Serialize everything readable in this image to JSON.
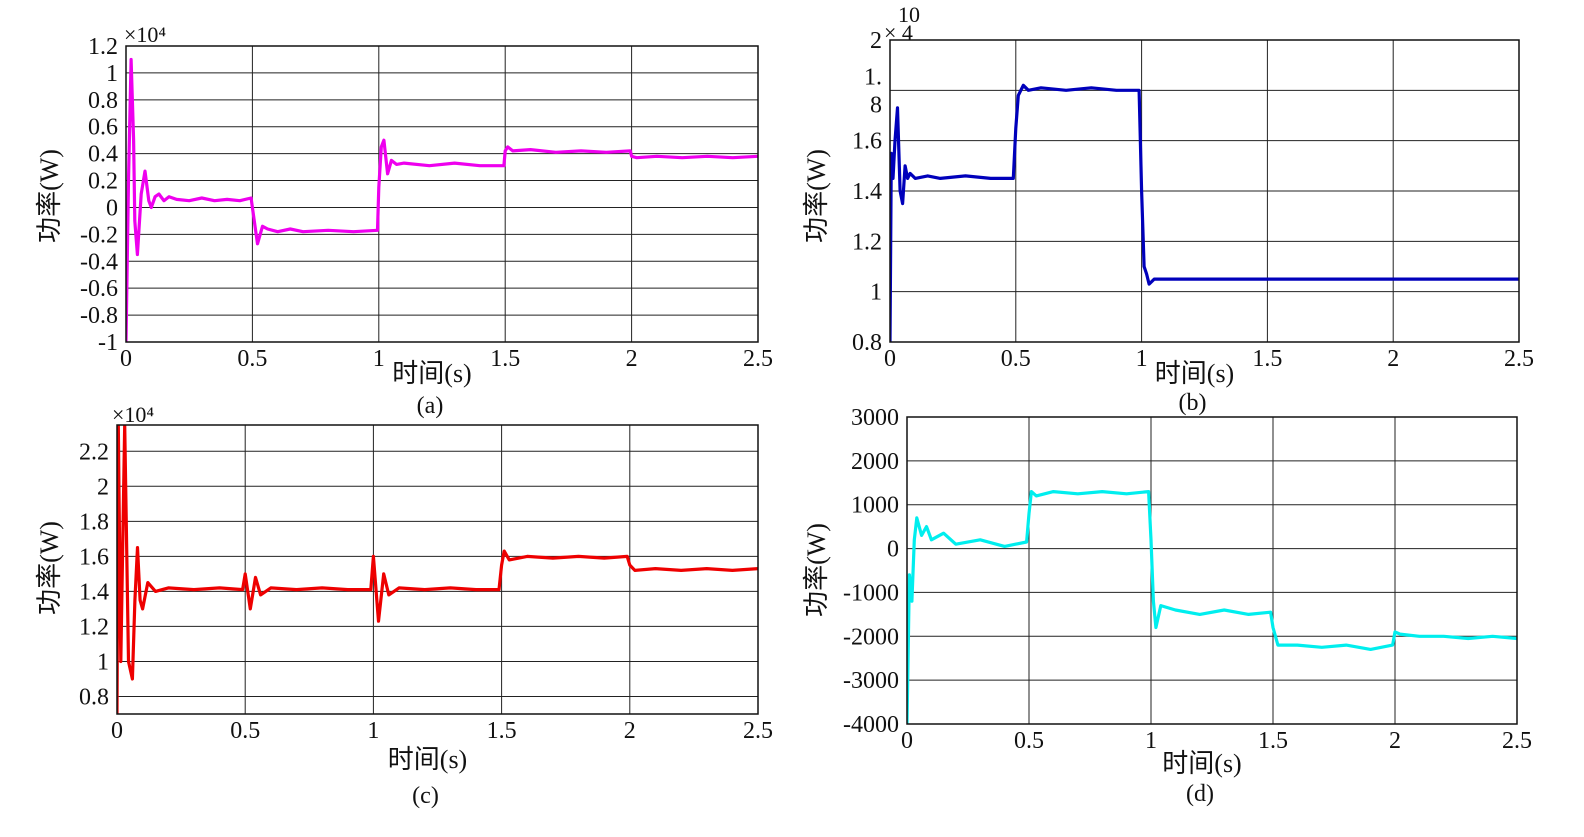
{
  "chart_data": [
    {
      "type": "line",
      "panel_label": "(a)",
      "xlabel": "时间(s)",
      "ylabel": "功率(W)",
      "multiplier": "×10⁴",
      "xlim": [
        0,
        2.5
      ],
      "ylim": [
        -1,
        1.2
      ],
      "xticks": [
        "0",
        "0.5",
        "1",
        "1.5",
        "2",
        "2.5"
      ],
      "yticks": [
        "1.2",
        "1",
        "0.8",
        "0.6",
        "0.4",
        "0.2",
        "0",
        "-0.2",
        "-0.4",
        "-0.6",
        "-0.8",
        "-1"
      ],
      "grid": true,
      "color": "#ee00ee",
      "series": [
        {
          "x": [
            0,
            0.01,
            0.02,
            0.03,
            0.035,
            0.045,
            0.06,
            0.075,
            0.09,
            0.1,
            0.115,
            0.13,
            0.15,
            0.17,
            0.2,
            0.25,
            0.3,
            0.35,
            0.4,
            0.45,
            0.495,
            0.5,
            0.52,
            0.54,
            0.56,
            0.6,
            0.65,
            0.7,
            0.8,
            0.9,
            0.995,
            1.0,
            1.01,
            1.02,
            1.035,
            1.05,
            1.07,
            1.1,
            1.2,
            1.3,
            1.4,
            1.495,
            1.5,
            1.51,
            1.53,
            1.6,
            1.7,
            1.8,
            1.9,
            1.995,
            2.0,
            2.02,
            2.1,
            2.2,
            2.3,
            2.4,
            2.5
          ],
          "y": [
            -1.0,
            0.2,
            1.1,
            0.5,
            -0.1,
            -0.35,
            0.1,
            0.27,
            0.05,
            0.0,
            0.08,
            0.1,
            0.05,
            0.08,
            0.06,
            0.05,
            0.07,
            0.05,
            0.06,
            0.05,
            0.07,
            0.0,
            -0.27,
            -0.14,
            -0.16,
            -0.18,
            -0.16,
            -0.18,
            -0.17,
            -0.18,
            -0.17,
            0.15,
            0.45,
            0.5,
            0.25,
            0.35,
            0.32,
            0.33,
            0.31,
            0.33,
            0.31,
            0.31,
            0.42,
            0.45,
            0.42,
            0.43,
            0.41,
            0.42,
            0.41,
            0.42,
            0.38,
            0.37,
            0.38,
            0.37,
            0.38,
            0.37,
            0.38
          ]
        }
      ]
    },
    {
      "type": "line",
      "panel_label": "(b)",
      "xlabel": "时间(s)",
      "ylabel": "功率(W)",
      "multiplier_top": "10",
      "multiplier_bottom": "× 4",
      "xlim": [
        0,
        2.5
      ],
      "ylim": [
        0.8,
        2
      ],
      "xticks": [
        "0",
        "0.5",
        "1",
        "1.5",
        "2",
        "2.5"
      ],
      "ytick_values": [
        2,
        1.8,
        1.6,
        1.4,
        1.2,
        1,
        0.8
      ],
      "yticks": [
        "2",
        "1.",
        "8",
        "1.6",
        "1.4",
        "1.2",
        "1",
        "0.8"
      ],
      "grid": true,
      "color": "#0000bb",
      "series": [
        {
          "x": [
            0,
            0.005,
            0.012,
            0.02,
            0.03,
            0.04,
            0.05,
            0.06,
            0.07,
            0.08,
            0.1,
            0.15,
            0.2,
            0.3,
            0.4,
            0.49,
            0.5,
            0.51,
            0.53,
            0.55,
            0.6,
            0.7,
            0.8,
            0.9,
            0.99,
            1.0,
            1.01,
            1.02,
            1.03,
            1.05,
            1.1,
            1.3,
            1.5,
            1.7,
            1.9,
            2.1,
            2.3,
            2.5
          ],
          "y": [
            0.8,
            1.55,
            1.45,
            1.6,
            1.73,
            1.4,
            1.35,
            1.5,
            1.45,
            1.47,
            1.45,
            1.46,
            1.45,
            1.46,
            1.45,
            1.45,
            1.65,
            1.78,
            1.82,
            1.8,
            1.81,
            1.8,
            1.81,
            1.8,
            1.8,
            1.4,
            1.1,
            1.07,
            1.03,
            1.05,
            1.05,
            1.05,
            1.05,
            1.05,
            1.05,
            1.05,
            1.05,
            1.05
          ]
        }
      ]
    },
    {
      "type": "line",
      "panel_label": "(c)",
      "xlabel": "时间(s)",
      "ylabel": "功率(W)",
      "multiplier": "×10⁴",
      "xlim": [
        0,
        2.5
      ],
      "ylim": [
        0.7,
        2.35
      ],
      "xticks": [
        "0",
        "0.5",
        "1",
        "1.5",
        "2",
        "2.5"
      ],
      "ytick_values": [
        2.2,
        2,
        1.8,
        1.6,
        1.4,
        1.2,
        1,
        0.8
      ],
      "yticks": [
        "2.2",
        "2",
        "1.8",
        "1.6",
        "1.4",
        "1.2",
        "1",
        "0.8"
      ],
      "grid": true,
      "color": "#ee0000",
      "series": [
        {
          "x": [
            0,
            0.005,
            0.015,
            0.03,
            0.045,
            0.06,
            0.07,
            0.08,
            0.09,
            0.1,
            0.12,
            0.15,
            0.2,
            0.3,
            0.4,
            0.49,
            0.5,
            0.52,
            0.54,
            0.56,
            0.6,
            0.7,
            0.8,
            0.9,
            0.99,
            1.0,
            1.02,
            1.04,
            1.06,
            1.1,
            1.2,
            1.3,
            1.4,
            1.49,
            1.5,
            1.51,
            1.53,
            1.6,
            1.7,
            1.8,
            1.9,
            1.99,
            2.0,
            2.02,
            2.1,
            2.2,
            2.3,
            2.4,
            2.5
          ],
          "y": [
            0.7,
            2.35,
            1.0,
            2.35,
            1.0,
            0.9,
            1.35,
            1.65,
            1.35,
            1.3,
            1.45,
            1.4,
            1.42,
            1.41,
            1.42,
            1.41,
            1.5,
            1.3,
            1.48,
            1.38,
            1.42,
            1.41,
            1.42,
            1.41,
            1.41,
            1.6,
            1.23,
            1.5,
            1.38,
            1.42,
            1.41,
            1.42,
            1.41,
            1.41,
            1.55,
            1.63,
            1.58,
            1.6,
            1.59,
            1.6,
            1.59,
            1.6,
            1.55,
            1.52,
            1.53,
            1.52,
            1.53,
            1.52,
            1.53
          ]
        }
      ]
    },
    {
      "type": "line",
      "panel_label": "(d)",
      "xlabel": "时间(s)",
      "ylabel": "功率(W)",
      "xlim": [
        0,
        2.5
      ],
      "ylim": [
        -4000,
        3000
      ],
      "xticks": [
        "0",
        "0.5",
        "1",
        "1.5",
        "2",
        "2.5"
      ],
      "ytick_values": [
        3000,
        2000,
        1000,
        0,
        -1000,
        -2000,
        -3000,
        -4000
      ],
      "yticks": [
        "3000",
        "2000",
        "1000",
        "0",
        "-1000",
        "-2000",
        "-3000",
        "-4000"
      ],
      "grid": true,
      "color": "#00eeee",
      "series": [
        {
          "x": [
            0,
            0.01,
            0.02,
            0.03,
            0.04,
            0.06,
            0.08,
            0.1,
            0.15,
            0.2,
            0.3,
            0.4,
            0.49,
            0.5,
            0.51,
            0.53,
            0.6,
            0.7,
            0.8,
            0.9,
            0.99,
            1.0,
            1.01,
            1.02,
            1.04,
            1.1,
            1.2,
            1.3,
            1.4,
            1.49,
            1.5,
            1.52,
            1.6,
            1.7,
            1.8,
            1.9,
            1.99,
            2.0,
            2.02,
            2.1,
            2.2,
            2.3,
            2.4,
            2.5
          ],
          "y": [
            -4000,
            -600,
            -1200,
            200,
            700,
            300,
            500,
            200,
            350,
            100,
            200,
            50,
            150,
            800,
            1300,
            1200,
            1300,
            1250,
            1300,
            1250,
            1300,
            200,
            -1200,
            -1800,
            -1300,
            -1400,
            -1500,
            -1400,
            -1500,
            -1450,
            -1800,
            -2200,
            -2200,
            -2250,
            -2200,
            -2300,
            -2200,
            -1900,
            -1950,
            -2000,
            -2000,
            -2050,
            -2000,
            -2050
          ]
        }
      ]
    }
  ]
}
